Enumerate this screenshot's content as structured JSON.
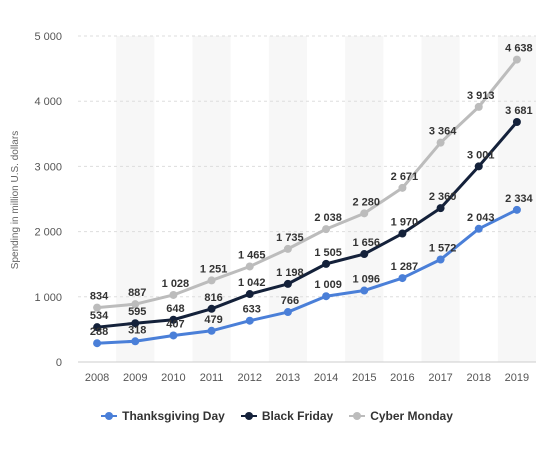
{
  "chart_data": {
    "type": "line",
    "title": "",
    "xlabel": "",
    "ylabel": "Spending in million U.S. dollars",
    "ylim": [
      0,
      5000
    ],
    "yticks": [
      0,
      1000,
      2000,
      3000,
      4000,
      5000
    ],
    "ytick_labels": [
      "0",
      "1 000",
      "2 000",
      "3 000",
      "4 000",
      "5 000"
    ],
    "categories": [
      "2008",
      "2009",
      "2010",
      "2011",
      "2012",
      "2013",
      "2014",
      "2015",
      "2016",
      "2017",
      "2018",
      "2019"
    ],
    "grid": true,
    "legend_position": "bottom",
    "series": [
      {
        "name": "Thanksgiving Day",
        "color": "#4a7fd8",
        "values": [
          288,
          318,
          407,
          479,
          633,
          766,
          1009,
          1096,
          1287,
          1572,
          2043,
          2334
        ],
        "labels": [
          "288",
          "318",
          "407",
          "479",
          "633",
          "766",
          "1 009",
          "1 096",
          "1 287",
          "1 572",
          "2 043",
          "2 334"
        ]
      },
      {
        "name": "Black Friday",
        "color": "#14213a",
        "values": [
          534,
          595,
          648,
          816,
          1042,
          1198,
          1505,
          1656,
          1970,
          2360,
          3001,
          3681
        ],
        "labels": [
          "534",
          "595",
          "648",
          "816",
          "1 042",
          "1 198",
          "1 505",
          "1 656",
          "1 970",
          "2 360",
          "3 001",
          "3 681"
        ]
      },
      {
        "name": "Cyber Monday",
        "color": "#bcbcbc",
        "values": [
          834,
          887,
          1028,
          1251,
          1465,
          1735,
          2038,
          2280,
          2671,
          3364,
          3913,
          4638
        ],
        "labels": [
          "834",
          "887",
          "1 028",
          "1 251",
          "1 465",
          "1 735",
          "2 038",
          "2 280",
          "2 671",
          "3 364",
          "3 913",
          "4 638"
        ]
      }
    ]
  }
}
